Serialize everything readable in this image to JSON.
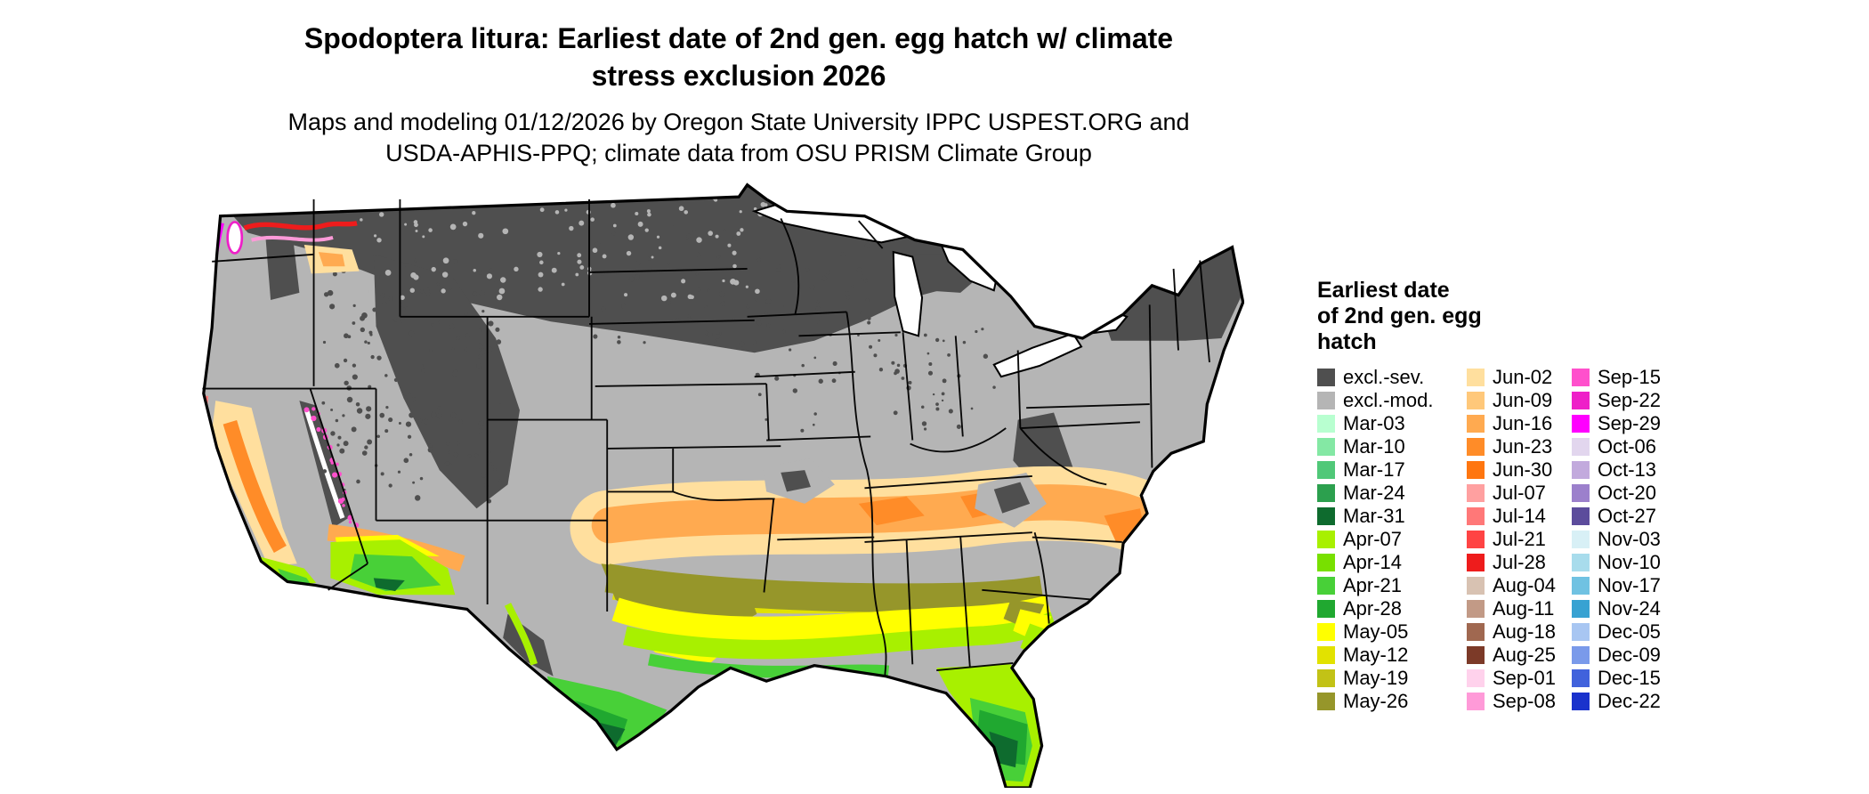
{
  "title": {
    "line1": "Spodoptera litura: Earliest date of 2nd gen. egg hatch w/ climate",
    "line2": "stress exclusion 2026"
  },
  "subtitle": {
    "line1": "Maps and modeling 01/12/2026 by Oregon State University IPPC USPEST.ORG and",
    "line2": "USDA-APHIS-PPQ; climate data from OSU PRISM Climate Group"
  },
  "legend": {
    "title_lines": [
      "Earliest date",
      "of 2nd gen. egg",
      "hatch"
    ],
    "columns": [
      [
        {
          "label": "excl.-sev.",
          "color": "#4f4f4f"
        },
        {
          "label": "excl.-mod.",
          "color": "#b5b5b5"
        },
        {
          "label": "Mar-03",
          "color": "#b8ffd0"
        },
        {
          "label": "Mar-10",
          "color": "#84e8a4"
        },
        {
          "label": "Mar-17",
          "color": "#50c878"
        },
        {
          "label": "Mar-24",
          "color": "#2ca04e"
        },
        {
          "label": "Mar-31",
          "color": "#0e6b2e"
        },
        {
          "label": "Apr-07",
          "color": "#a8f000"
        },
        {
          "label": "Apr-14",
          "color": "#78e000"
        },
        {
          "label": "Apr-21",
          "color": "#48d038"
        },
        {
          "label": "Apr-28",
          "color": "#20a830"
        },
        {
          "label": "May-05",
          "color": "#ffff00"
        },
        {
          "label": "May-12",
          "color": "#e2e200"
        },
        {
          "label": "May-19",
          "color": "#c2c216"
        },
        {
          "label": "May-26",
          "color": "#96962a"
        }
      ],
      [
        {
          "label": "Jun-02",
          "color": "#ffdf9e"
        },
        {
          "label": "Jun-09",
          "color": "#ffc87a"
        },
        {
          "label": "Jun-16",
          "color": "#ffaa50"
        },
        {
          "label": "Jun-23",
          "color": "#ff8c28"
        },
        {
          "label": "Jun-30",
          "color": "#ff7610"
        },
        {
          "label": "Jul-07",
          "color": "#ffa0a0"
        },
        {
          "label": "Jul-14",
          "color": "#ff7878"
        },
        {
          "label": "Jul-21",
          "color": "#ff4444"
        },
        {
          "label": "Jul-28",
          "color": "#ee1c1c"
        },
        {
          "label": "Aug-04",
          "color": "#d8c2b2"
        },
        {
          "label": "Aug-11",
          "color": "#c29a86"
        },
        {
          "label": "Aug-18",
          "color": "#a06850"
        },
        {
          "label": "Aug-25",
          "color": "#7c3a28"
        },
        {
          "label": "Sep-01",
          "color": "#ffd2ec"
        },
        {
          "label": "Sep-08",
          "color": "#ff9ad8"
        }
      ],
      [
        {
          "label": "Sep-15",
          "color": "#ff50cc"
        },
        {
          "label": "Sep-22",
          "color": "#ee20c8"
        },
        {
          "label": "Sep-29",
          "color": "#ff00ff"
        },
        {
          "label": "Oct-06",
          "color": "#e2d6ee"
        },
        {
          "label": "Oct-13",
          "color": "#c2aadd"
        },
        {
          "label": "Oct-20",
          "color": "#9c80cc"
        },
        {
          "label": "Oct-27",
          "color": "#5c4c9c"
        },
        {
          "label": "Nov-03",
          "color": "#d8f0f6"
        },
        {
          "label": "Nov-10",
          "color": "#a8dcec"
        },
        {
          "label": "Nov-17",
          "color": "#70c2e2"
        },
        {
          "label": "Nov-24",
          "color": "#38a2d2"
        },
        {
          "label": "Dec-05",
          "color": "#a8c6f2"
        },
        {
          "label": "Dec-09",
          "color": "#7a9aea"
        },
        {
          "label": "Dec-15",
          "color": "#4162dc"
        },
        {
          "label": "Dec-22",
          "color": "#1a32cc"
        }
      ]
    ]
  }
}
